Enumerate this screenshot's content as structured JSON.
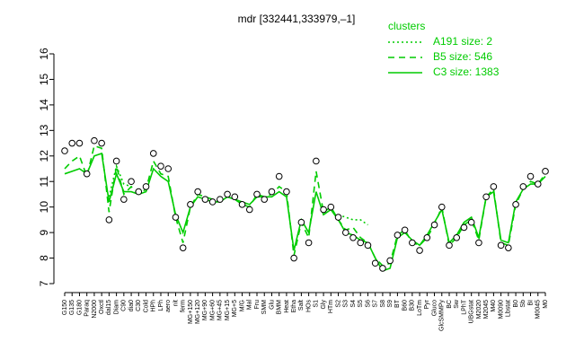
{
  "chart_data": {
    "type": "line",
    "title": "mdr [332441,333979,–1]",
    "legend_title": "clusters",
    "legend_position": "top-right",
    "categories": [
      "G150",
      "G135",
      "G180",
      "Paraq",
      "N2000",
      "Oxctl",
      "dal15",
      "Diam",
      "C90",
      "dia0",
      "C30",
      "Cold",
      "HPh",
      "LPh",
      "aero",
      "nit",
      "ferm",
      "MG+150",
      "MG+120",
      "MG+90",
      "MG+60",
      "MG+45",
      "MG+15",
      "MG+5",
      "M/G",
      "Mal",
      "Fru",
      "SMM",
      "Glu",
      "BMM",
      "Heat",
      "Etha",
      "Salt",
      "HOs",
      "S1",
      "Gly",
      "HTm",
      "S2",
      "S3",
      "S4",
      "S5",
      "S6",
      "S7",
      "S8",
      "S9",
      "BT",
      "B60",
      "B30",
      "LoTm",
      "Pyr",
      "Gluco",
      "GlcSMMPy",
      "BC",
      "Sw",
      "LPhT",
      "UBGstat",
      "M2020",
      "M2045",
      "M40",
      "M0090",
      "Lbstat",
      "B0",
      "Sb",
      "BI",
      "M0045",
      "M0"
    ],
    "series": [
      {
        "name": "A191 size: 2",
        "color": "#00cc00",
        "dash": "2,3",
        "values": [
          null,
          null,
          null,
          null,
          null,
          null,
          10.4,
          11.6,
          10.9,
          10.8,
          null,
          null,
          null,
          null,
          null,
          null,
          null,
          null,
          null,
          null,
          null,
          null,
          null,
          null,
          null,
          null,
          null,
          null,
          null,
          null,
          null,
          null,
          null,
          null,
          null,
          null,
          null,
          9.7,
          9.6,
          9.5,
          9.5,
          9.3,
          null,
          null,
          null,
          null,
          null,
          null,
          null,
          null,
          null,
          null,
          null,
          null,
          null,
          null,
          null,
          null,
          null,
          null,
          null,
          null,
          null,
          null,
          null,
          null
        ]
      },
      {
        "name": "B5 size: 546",
        "color": "#00cc00",
        "dash": "7,5",
        "values": [
          11.5,
          11.8,
          12.0,
          11.2,
          12.4,
          12.3,
          9.8,
          11.6,
          10.5,
          10.8,
          10.5,
          10.7,
          11.8,
          11.3,
          11.2,
          9.6,
          8.6,
          10.0,
          10.5,
          10.4,
          10.3,
          10.2,
          10.4,
          10.3,
          10.1,
          10.0,
          10.5,
          10.4,
          10.5,
          10.8,
          10.6,
          8.1,
          9.4,
          8.8,
          11.4,
          9.8,
          10.0,
          9.5,
          9.1,
          9.2,
          8.8,
          8.6,
          8.0,
          7.7,
          7.8,
          8.9,
          9.1,
          8.6,
          8.5,
          8.8,
          9.3,
          10.0,
          8.5,
          8.8,
          9.3,
          9.5,
          8.7,
          10.4,
          10.7,
          8.6,
          8.5,
          10.1,
          10.7,
          11.0,
          10.9,
          11.3
        ]
      },
      {
        "name": "C3 size: 1383",
        "color": "#00cc00",
        "dash": "none",
        "values": [
          11.3,
          11.4,
          11.5,
          11.3,
          12.0,
          12.1,
          10.2,
          11.3,
          10.6,
          10.6,
          10.5,
          10.6,
          11.5,
          11.2,
          11.0,
          9.7,
          9.0,
          10.0,
          10.4,
          10.3,
          10.2,
          10.2,
          10.4,
          10.3,
          10.2,
          10.1,
          10.4,
          10.4,
          10.4,
          10.6,
          10.4,
          8.3,
          9.5,
          9.0,
          10.6,
          9.7,
          9.9,
          9.5,
          9.0,
          8.9,
          8.7,
          8.6,
          8.0,
          7.5,
          7.6,
          8.8,
          9.0,
          8.7,
          8.5,
          8.9,
          9.4,
          9.9,
          8.6,
          8.9,
          9.4,
          9.6,
          8.8,
          10.4,
          10.6,
          8.7,
          8.6,
          10.2,
          10.7,
          10.9,
          10.9,
          11.2
        ]
      }
    ],
    "points": [
      12.2,
      12.5,
      12.5,
      11.3,
      12.6,
      12.5,
      9.5,
      11.8,
      10.3,
      11.0,
      10.6,
      10.8,
      12.1,
      11.6,
      11.5,
      9.6,
      8.4,
      10.1,
      10.6,
      10.3,
      10.2,
      10.3,
      10.5,
      10.4,
      10.1,
      9.9,
      10.5,
      10.3,
      10.6,
      11.2,
      10.6,
      8.0,
      9.4,
      8.6,
      11.8,
      9.9,
      10.0,
      9.6,
      9.0,
      8.8,
      8.6,
      8.5,
      7.8,
      7.6,
      7.9,
      8.9,
      9.1,
      8.6,
      8.3,
      8.8,
      9.3,
      10.0,
      8.5,
      8.8,
      9.2,
      9.4,
      8.6,
      10.4,
      10.8,
      8.5,
      8.4,
      10.1,
      10.8,
      11.2,
      10.9,
      11.4
    ],
    "points_color": "#000000",
    "ylim": [
      7,
      16
    ],
    "yticks": [
      7,
      8,
      9,
      10,
      11,
      12,
      13,
      14,
      15,
      16
    ]
  }
}
